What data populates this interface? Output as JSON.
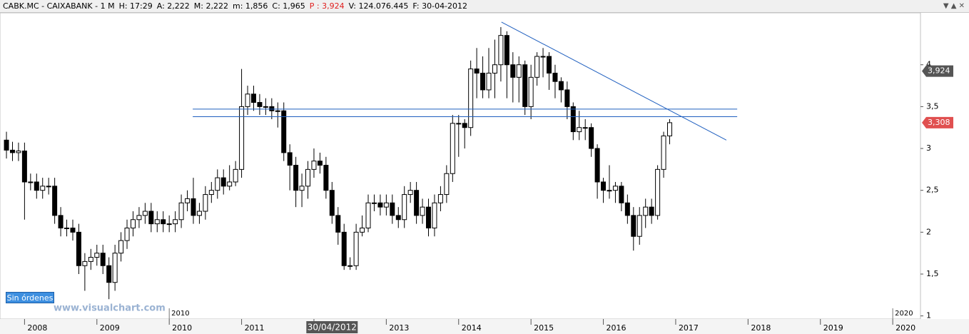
{
  "header_fields": [
    {
      "text": "CABK.MC - CAIXABANK - 1 M"
    },
    {
      "text": "H: 17:29"
    },
    {
      "text": "A: 2,222"
    },
    {
      "text": "M: 2,222"
    },
    {
      "text": "m: 1,856"
    },
    {
      "text": "C: 1,965"
    },
    {
      "text": "P : 3,924",
      "color": "#e02020"
    },
    {
      "text": "V: 124.076.445"
    },
    {
      "text": "F: 30-04-2012"
    }
  ],
  "button": "Sin órdenes",
  "watermark": "www.visualchart.com",
  "chart_data": {
    "type": "candlestick",
    "ylim": [
      0.98,
      4.62
    ],
    "yticks": [
      1,
      {
        "value": 1.5,
        "label": "1,5"
      },
      2,
      {
        "value": 2.5,
        "label": "2,5"
      },
      3,
      {
        "value": 3.5,
        "label": "3,5"
      },
      4
    ],
    "xlim": [
      -1.07,
      151.6
    ],
    "xticks": [
      {
        "value": 3,
        "label": "2008"
      },
      {
        "value": 15,
        "label": "2009"
      },
      {
        "value": 27,
        "label": "2010"
      },
      {
        "value": 39,
        "label": "2011"
      },
      {
        "value": 51,
        "label": "2012"
      },
      {
        "value": 63,
        "label": "2013"
      },
      {
        "value": 75,
        "label": "2014"
      },
      {
        "value": 87,
        "label": "2015"
      },
      {
        "value": 99,
        "label": "2016"
      },
      {
        "value": 111,
        "label": "2017"
      },
      {
        "value": 123,
        "label": "2018"
      },
      {
        "value": 135,
        "label": "2019"
      },
      {
        "value": 147,
        "label": "2020"
      }
    ],
    "up_color": "#ffffff",
    "down_color": "#000000",
    "series": {
      "open": [
        3.1,
        2.98,
        2.95,
        2.97,
        2.6,
        2.6,
        2.5,
        2.55,
        2.55,
        2.2,
        2.05,
        2.05,
        2.0,
        1.6,
        1.65,
        1.7,
        1.75,
        1.6,
        1.4,
        1.75,
        1.9,
        2.05,
        2.15,
        2.2,
        2.25,
        2.1,
        2.15,
        2.1,
        2.1,
        2.15,
        2.35,
        2.4,
        2.2,
        2.25,
        2.45,
        2.5,
        2.65,
        2.55,
        2.6,
        2.75,
        3.5,
        3.65,
        3.55,
        3.5,
        3.5,
        3.45,
        3.45,
        2.95,
        2.8,
        2.5,
        2.55,
        2.75,
        2.85,
        2.8,
        2.5,
        2.2,
        2.0,
        1.6,
        1.6,
        2.0,
        2.05,
        2.35,
        2.35,
        2.3,
        2.35,
        2.2,
        2.15,
        2.45,
        2.5,
        2.2,
        2.3,
        2.05,
        2.35,
        2.45,
        2.7,
        3.3,
        3.3,
        3.25,
        3.95,
        3.9,
        3.7,
        3.9,
        4.0,
        4.35,
        4.0,
        3.85,
        4.0,
        3.5,
        3.85,
        4.1,
        4.1,
        3.9,
        3.8,
        3.7,
        3.5,
        3.2,
        3.25,
        3.25,
        3.0,
        2.6,
        2.5,
        2.5,
        2.55,
        2.35,
        2.2,
        1.95,
        2.2,
        2.3,
        2.2,
        2.75,
        3.15
      ],
      "high": [
        3.2,
        3.08,
        3.07,
        3.07,
        2.7,
        2.7,
        2.65,
        2.65,
        2.65,
        2.3,
        2.15,
        2.15,
        2.1,
        1.75,
        1.8,
        1.85,
        1.85,
        1.7,
        1.85,
        2.0,
        2.15,
        2.25,
        2.3,
        2.35,
        2.35,
        2.25,
        2.25,
        2.2,
        2.25,
        2.45,
        2.5,
        2.65,
        2.35,
        2.55,
        2.6,
        2.75,
        2.75,
        2.8,
        2.85,
        3.95,
        3.75,
        3.75,
        3.65,
        3.6,
        3.6,
        3.55,
        3.55,
        3.05,
        2.9,
        2.7,
        2.85,
        3.0,
        2.95,
        2.9,
        2.6,
        2.3,
        2.1,
        1.7,
        2.1,
        2.2,
        2.45,
        2.45,
        2.45,
        2.45,
        2.45,
        2.3,
        2.55,
        2.6,
        2.6,
        2.4,
        2.4,
        2.45,
        2.55,
        2.8,
        3.4,
        3.4,
        3.35,
        4.05,
        4.2,
        4.1,
        4.2,
        4.3,
        4.45,
        4.4,
        4.15,
        4.1,
        4.05,
        4.0,
        4.15,
        4.2,
        4.15,
        4.0,
        3.85,
        3.8,
        3.55,
        3.45,
        3.35,
        3.3,
        3.05,
        2.65,
        2.8,
        2.6,
        2.6,
        2.45,
        2.3,
        2.3,
        2.4,
        2.4,
        2.8,
        3.2,
        3.35
      ],
      "low": [
        2.88,
        2.85,
        2.85,
        2.15,
        2.5,
        2.4,
        2.4,
        2.45,
        2.1,
        1.95,
        1.95,
        1.9,
        1.5,
        1.3,
        1.55,
        1.6,
        1.5,
        1.2,
        1.3,
        1.65,
        1.8,
        1.95,
        2.05,
        2.1,
        2.0,
        2.0,
        2.0,
        2.0,
        2.0,
        2.05,
        2.25,
        2.1,
        2.1,
        2.15,
        2.35,
        2.4,
        2.45,
        2.5,
        2.55,
        2.65,
        3.4,
        3.45,
        3.4,
        3.4,
        3.35,
        3.25,
        2.85,
        2.5,
        2.3,
        2.3,
        2.4,
        2.65,
        2.7,
        2.4,
        2.1,
        1.85,
        1.55,
        1.55,
        1.55,
        1.95,
        2.0,
        2.25,
        2.2,
        2.2,
        2.1,
        2.05,
        2.05,
        2.35,
        2.1,
        2.1,
        1.95,
        1.95,
        2.25,
        2.35,
        2.6,
        2.9,
        3.0,
        3.15,
        3.6,
        3.6,
        3.6,
        3.6,
        3.8,
        3.6,
        3.55,
        3.55,
        3.4,
        3.35,
        3.75,
        3.85,
        3.7,
        3.6,
        3.55,
        3.35,
        3.1,
        3.1,
        3.1,
        2.9,
        2.4,
        2.35,
        2.4,
        2.35,
        2.25,
        2.1,
        1.78,
        1.85,
        2.05,
        2.1,
        2.15,
        2.65,
        3.05
      ],
      "close": [
        2.98,
        2.95,
        2.97,
        2.6,
        2.6,
        2.5,
        2.55,
        2.55,
        2.2,
        2.05,
        2.05,
        2.0,
        1.6,
        1.65,
        1.7,
        1.75,
        1.6,
        1.4,
        1.75,
        1.9,
        2.05,
        2.15,
        2.2,
        2.25,
        2.1,
        2.15,
        2.1,
        2.1,
        2.15,
        2.35,
        2.4,
        2.2,
        2.25,
        2.45,
        2.5,
        2.65,
        2.55,
        2.6,
        2.75,
        3.5,
        3.65,
        3.55,
        3.5,
        3.5,
        3.45,
        3.45,
        2.95,
        2.8,
        2.5,
        2.55,
        2.75,
        2.85,
        2.8,
        2.5,
        2.2,
        2.0,
        1.6,
        1.6,
        2.0,
        2.05,
        2.35,
        2.35,
        2.3,
        2.35,
        2.2,
        2.15,
        2.45,
        2.5,
        2.2,
        2.3,
        2.05,
        2.35,
        2.45,
        2.7,
        3.3,
        3.3,
        3.25,
        3.95,
        3.9,
        3.7,
        3.9,
        4.0,
        4.35,
        4.0,
        3.85,
        4.0,
        3.5,
        3.85,
        4.1,
        4.1,
        3.9,
        3.8,
        3.7,
        3.5,
        3.2,
        3.25,
        3.25,
        3.0,
        2.6,
        2.5,
        2.5,
        2.55,
        2.35,
        2.2,
        1.95,
        2.2,
        2.3,
        2.2,
        2.75,
        3.15,
        3.308
      ]
    },
    "drawings": [
      {
        "x": [
          30.9,
          121.2
        ],
        "y": [
          3.47,
          3.47
        ],
        "color": "#1f5fbf"
      },
      {
        "x": [
          30.9,
          121.2
        ],
        "y": [
          3.38,
          3.38
        ],
        "color": "#1f5fbf"
      },
      {
        "x": [
          82.1,
          119.4
        ],
        "y": [
          4.51,
          3.1
        ],
        "color": "#1f5fbf"
      }
    ],
    "markers": [
      {
        "x": 27,
        "label": "2010"
      },
      {
        "x": 147,
        "label": "2020"
      }
    ],
    "price_tags": [
      {
        "value": 3.924,
        "label": "3,924",
        "color": "#555555"
      },
      {
        "value": 3.308,
        "label": "3,308",
        "color": "#e05050"
      }
    ],
    "cursor": {
      "x": 54,
      "label": "30/04/2012"
    }
  }
}
